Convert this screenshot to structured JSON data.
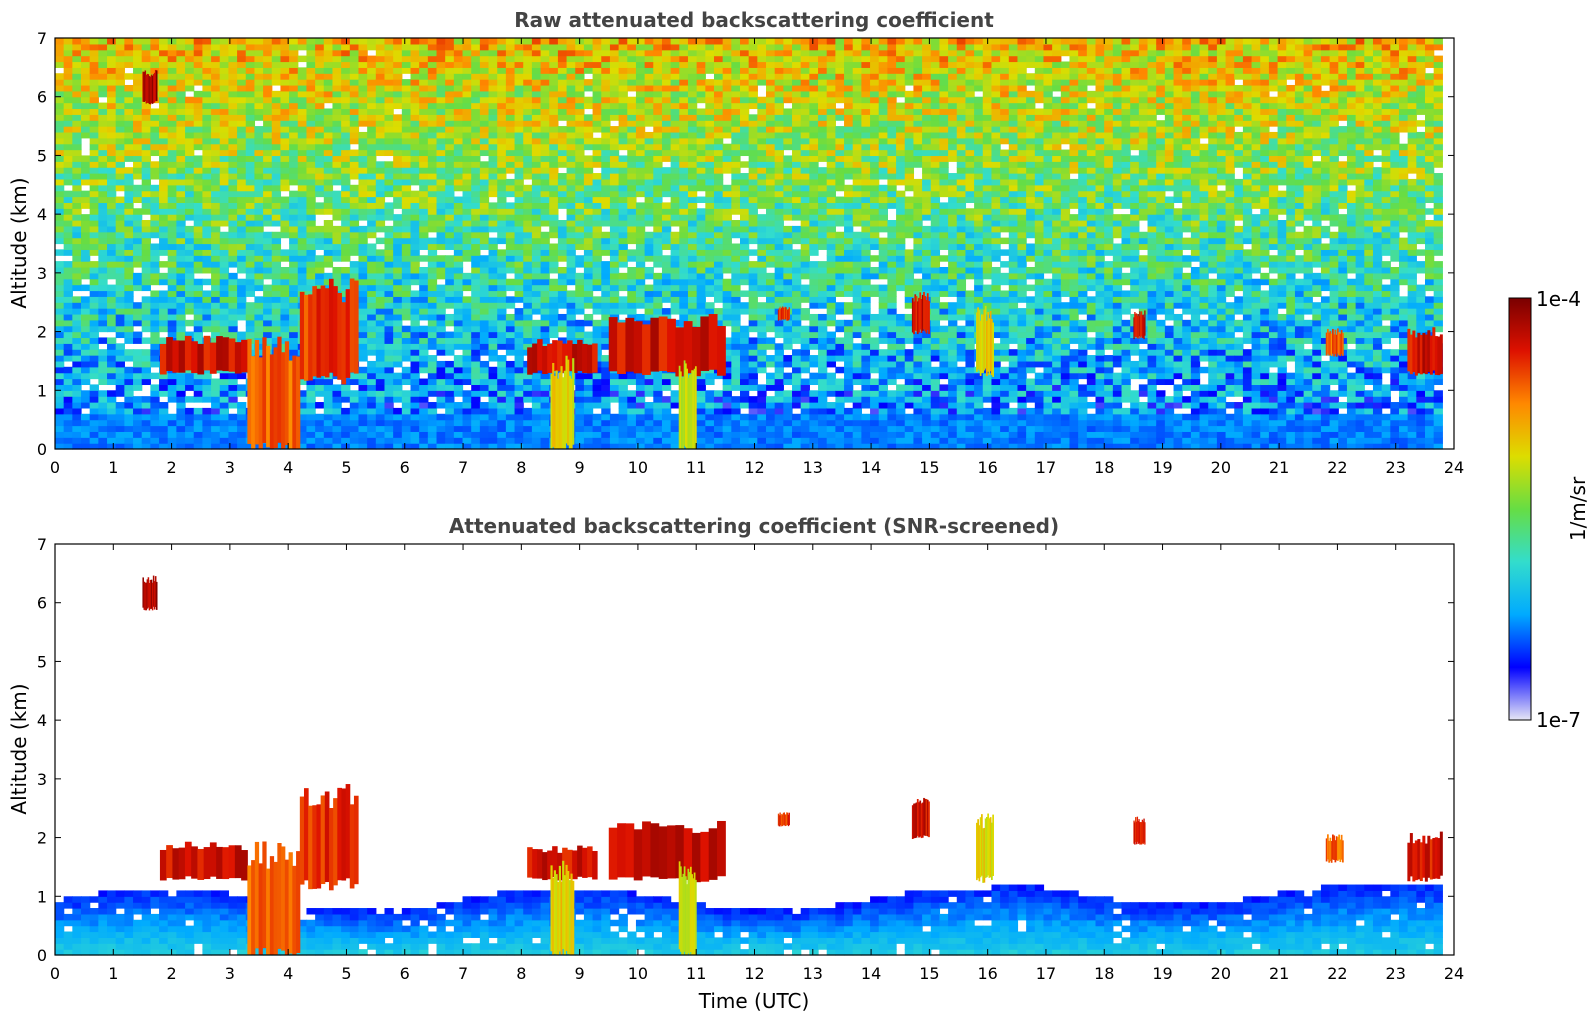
{
  "chart_data": [
    {
      "type": "heatmap",
      "title": "Raw attenuated backscattering coefficient",
      "xlabel": "",
      "ylabel": "Altitude (km)",
      "xlim": [
        0,
        24
      ],
      "ylim": [
        0,
        7
      ],
      "xticks": [
        "0",
        "1",
        "2",
        "3",
        "4",
        "5",
        "6",
        "7",
        "8",
        "9",
        "10",
        "11",
        "12",
        "13",
        "14",
        "15",
        "16",
        "17",
        "18",
        "19",
        "20",
        "21",
        "22",
        "23",
        "24"
      ],
      "yticks": [
        "0",
        "1",
        "2",
        "3",
        "4",
        "5",
        "6",
        "7"
      ],
      "data_end_time": 23.8,
      "background": "noisy",
      "features": [
        {
          "t0": 1.5,
          "t1": 1.75,
          "z0": 5.9,
          "z1": 6.4,
          "level": 1.0
        },
        {
          "t0": 1.8,
          "t1": 3.3,
          "z0": 1.3,
          "z1": 1.85,
          "level": 0.95
        },
        {
          "t0": 3.3,
          "t1": 4.2,
          "z0": 0.0,
          "z1": 1.7,
          "level": 0.85
        },
        {
          "t0": 4.2,
          "t1": 5.2,
          "z0": 1.2,
          "z1": 2.7,
          "level": 0.9
        },
        {
          "t0": 8.1,
          "t1": 9.3,
          "z0": 1.3,
          "z1": 1.8,
          "level": 0.95
        },
        {
          "t0": 8.5,
          "t1": 8.9,
          "z0": 0.0,
          "z1": 1.4,
          "level": 0.7
        },
        {
          "t0": 9.5,
          "t1": 11.5,
          "z0": 1.3,
          "z1": 2.2,
          "level": 0.95
        },
        {
          "t0": 10.7,
          "t1": 11.0,
          "z0": 0.0,
          "z1": 1.4,
          "level": 0.65
        },
        {
          "t0": 12.4,
          "t1": 12.6,
          "z0": 2.2,
          "z1": 2.4,
          "level": 0.9
        },
        {
          "t0": 14.7,
          "t1": 15.0,
          "z0": 2.0,
          "z1": 2.6,
          "level": 0.95
        },
        {
          "t0": 15.8,
          "t1": 16.1,
          "z0": 1.3,
          "z1": 2.3,
          "level": 0.7
        },
        {
          "t0": 18.5,
          "t1": 18.7,
          "z0": 1.9,
          "z1": 2.3,
          "level": 0.95
        },
        {
          "t0": 21.8,
          "t1": 22.1,
          "z0": 1.6,
          "z1": 2.0,
          "level": 0.85
        },
        {
          "t0": 23.2,
          "t1": 23.8,
          "z0": 1.3,
          "z1": 2.0,
          "level": 0.95
        }
      ]
    },
    {
      "type": "heatmap",
      "title": "Attenuated backscattering coefficient (SNR-screened)",
      "xlabel": "Time (UTC)",
      "ylabel": "Altitude (km)",
      "xlim": [
        0,
        24
      ],
      "ylim": [
        0,
        7
      ],
      "xticks": [
        "0",
        "1",
        "2",
        "3",
        "4",
        "5",
        "6",
        "7",
        "8",
        "9",
        "10",
        "11",
        "12",
        "13",
        "14",
        "15",
        "16",
        "17",
        "18",
        "19",
        "20",
        "21",
        "22",
        "23",
        "24"
      ],
      "yticks": [
        "0",
        "1",
        "2",
        "3",
        "4",
        "5",
        "6",
        "7"
      ],
      "data_end_time": 23.8,
      "background": "screened",
      "features": [
        {
          "t0": 1.5,
          "t1": 1.75,
          "z0": 5.9,
          "z1": 6.4,
          "level": 1.0
        },
        {
          "t0": 1.8,
          "t1": 3.3,
          "z0": 1.3,
          "z1": 1.85,
          "level": 0.95
        },
        {
          "t0": 3.3,
          "t1": 4.2,
          "z0": 0.0,
          "z1": 1.7,
          "level": 0.85
        },
        {
          "t0": 4.2,
          "t1": 5.2,
          "z0": 1.2,
          "z1": 2.7,
          "level": 0.9
        },
        {
          "t0": 8.1,
          "t1": 9.3,
          "z0": 1.3,
          "z1": 1.8,
          "level": 0.95
        },
        {
          "t0": 8.5,
          "t1": 8.9,
          "z0": 0.0,
          "z1": 1.4,
          "level": 0.7
        },
        {
          "t0": 9.5,
          "t1": 11.5,
          "z0": 1.3,
          "z1": 2.2,
          "level": 0.95
        },
        {
          "t0": 10.7,
          "t1": 11.0,
          "z0": 0.0,
          "z1": 1.4,
          "level": 0.65
        },
        {
          "t0": 12.4,
          "t1": 12.6,
          "z0": 2.2,
          "z1": 2.4,
          "level": 0.9
        },
        {
          "t0": 14.7,
          "t1": 15.0,
          "z0": 2.0,
          "z1": 2.6,
          "level": 0.95
        },
        {
          "t0": 15.8,
          "t1": 16.1,
          "z0": 1.3,
          "z1": 2.3,
          "level": 0.7
        },
        {
          "t0": 18.5,
          "t1": 18.7,
          "z0": 1.9,
          "z1": 2.3,
          "level": 0.95
        },
        {
          "t0": 21.8,
          "t1": 22.1,
          "z0": 1.6,
          "z1": 2.0,
          "level": 0.85
        },
        {
          "t0": 23.2,
          "t1": 23.8,
          "z0": 1.3,
          "z1": 2.0,
          "level": 0.95
        }
      ]
    }
  ],
  "colorbar": {
    "label": "1/m/sr",
    "max_label": "1e-4",
    "min_label": "1e-7",
    "colormap": "jet",
    "colors": [
      "#e6e6f5",
      "#0000ff",
      "#00aaff",
      "#33ddcc",
      "#66dd44",
      "#dddd00",
      "#ff8800",
      "#dd1100",
      "#7a0000"
    ]
  }
}
